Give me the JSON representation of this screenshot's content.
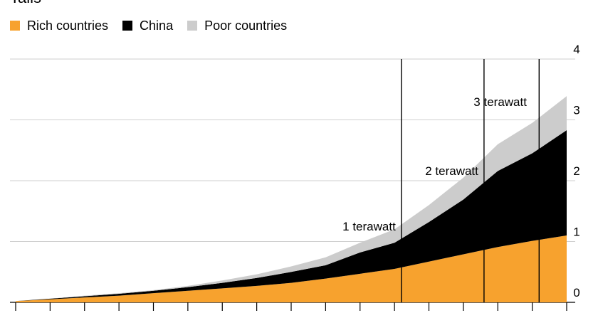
{
  "title_fragment": "Talls",
  "legend": {
    "items": [
      {
        "label": "Rich countries",
        "color": "#F7A22E"
      },
      {
        "label": "China",
        "color": "#000000"
      },
      {
        "label": "Poor countries",
        "color": "#CCCCCC"
      }
    ]
  },
  "chart_data": {
    "type": "area",
    "stacked": true,
    "x": [
      0,
      1,
      2,
      3,
      4,
      5,
      6,
      7,
      8,
      9,
      10,
      11,
      12,
      13,
      14,
      15,
      16
    ],
    "series": [
      {
        "name": "Rich countries",
        "color": "#F7A22E",
        "values": [
          0.02,
          0.05,
          0.08,
          0.11,
          0.15,
          0.19,
          0.23,
          0.27,
          0.32,
          0.39,
          0.47,
          0.55,
          0.67,
          0.79,
          0.91,
          1.01,
          1.1
        ]
      },
      {
        "name": "China",
        "color": "#000000",
        "values": [
          0.0,
          0.01,
          0.02,
          0.03,
          0.04,
          0.06,
          0.09,
          0.13,
          0.18,
          0.22,
          0.35,
          0.43,
          0.65,
          0.9,
          1.25,
          1.44,
          1.73
        ]
      },
      {
        "name": "Poor countries",
        "color": "#CCCCCC",
        "values": [
          0.0,
          0.0,
          0.01,
          0.01,
          0.01,
          0.02,
          0.04,
          0.06,
          0.09,
          0.13,
          0.16,
          0.22,
          0.28,
          0.36,
          0.44,
          0.5,
          0.56
        ]
      }
    ],
    "y_ticks": [
      "0",
      "1",
      "2",
      "3",
      "4"
    ],
    "ylim": [
      0,
      4
    ],
    "xlim": [
      0,
      16
    ],
    "x_tick_positions": [
      0,
      1,
      2,
      3,
      4,
      5,
      6,
      7,
      8,
      9,
      10,
      11,
      12,
      13,
      14,
      15,
      16
    ],
    "grid": true,
    "y_axis_side": "right",
    "legend_position": "top-left",
    "annotations": [
      {
        "label": "1 terawatt",
        "x": 11.2
      },
      {
        "label": "2 terawatt",
        "x": 13.6
      },
      {
        "label": "3 terawatt",
        "x": 15.2
      }
    ]
  }
}
